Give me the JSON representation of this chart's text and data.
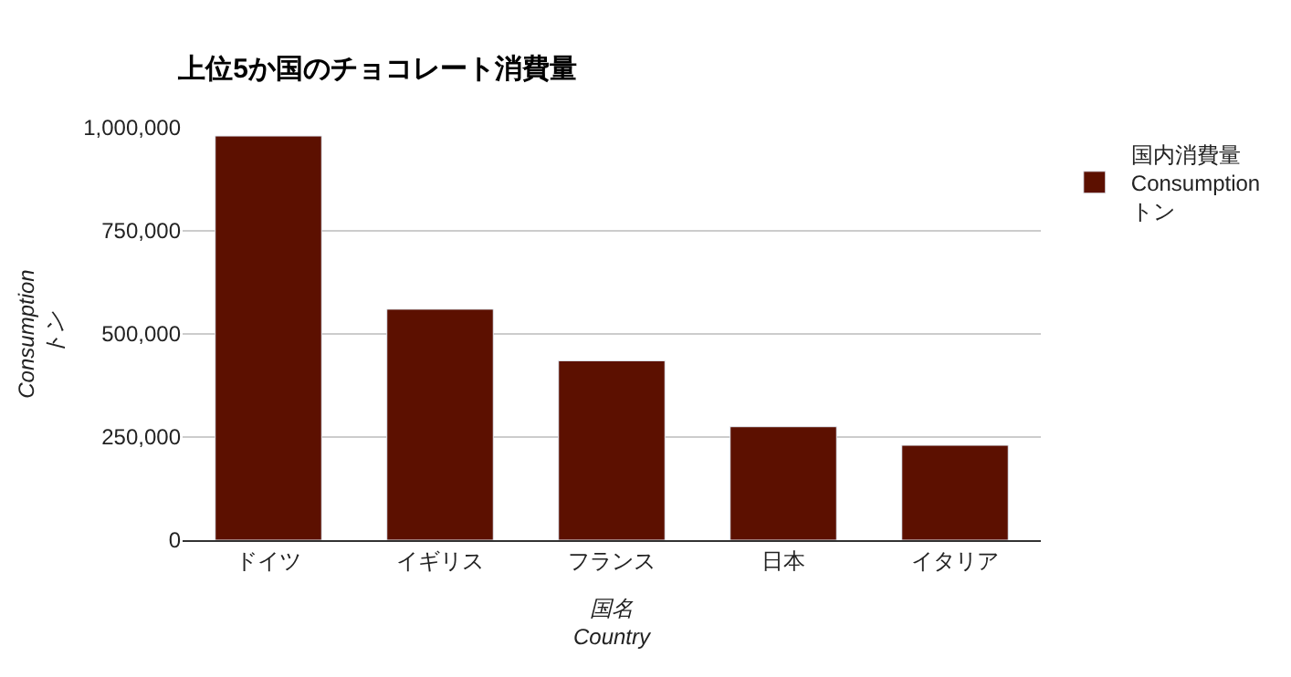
{
  "chart_data": {
    "type": "bar",
    "title": "上位5か国のチョコレート消費量",
    "xlabel": "国名\nCountry",
    "ylabel": "Consumption\nトン",
    "categories": [
      "ドイツ",
      "イギリス",
      "フランス",
      "日本",
      "イタリア"
    ],
    "series": [
      {
        "name": "国内消費量\nConsumption\nトン",
        "color": "#5c1000",
        "values": [
          980000,
          560000,
          435000,
          275000,
          230000
        ]
      }
    ],
    "ylim": [
      0,
      1000000
    ],
    "yticks": [
      {
        "value": 0,
        "label": "0"
      },
      {
        "value": 250000,
        "label": "250,000"
      },
      {
        "value": 500000,
        "label": "500,000"
      },
      {
        "value": 750000,
        "label": "750,000"
      },
      {
        "value": 1000000,
        "label": "1,000,000"
      }
    ],
    "grid": "y",
    "legend": "top right"
  }
}
